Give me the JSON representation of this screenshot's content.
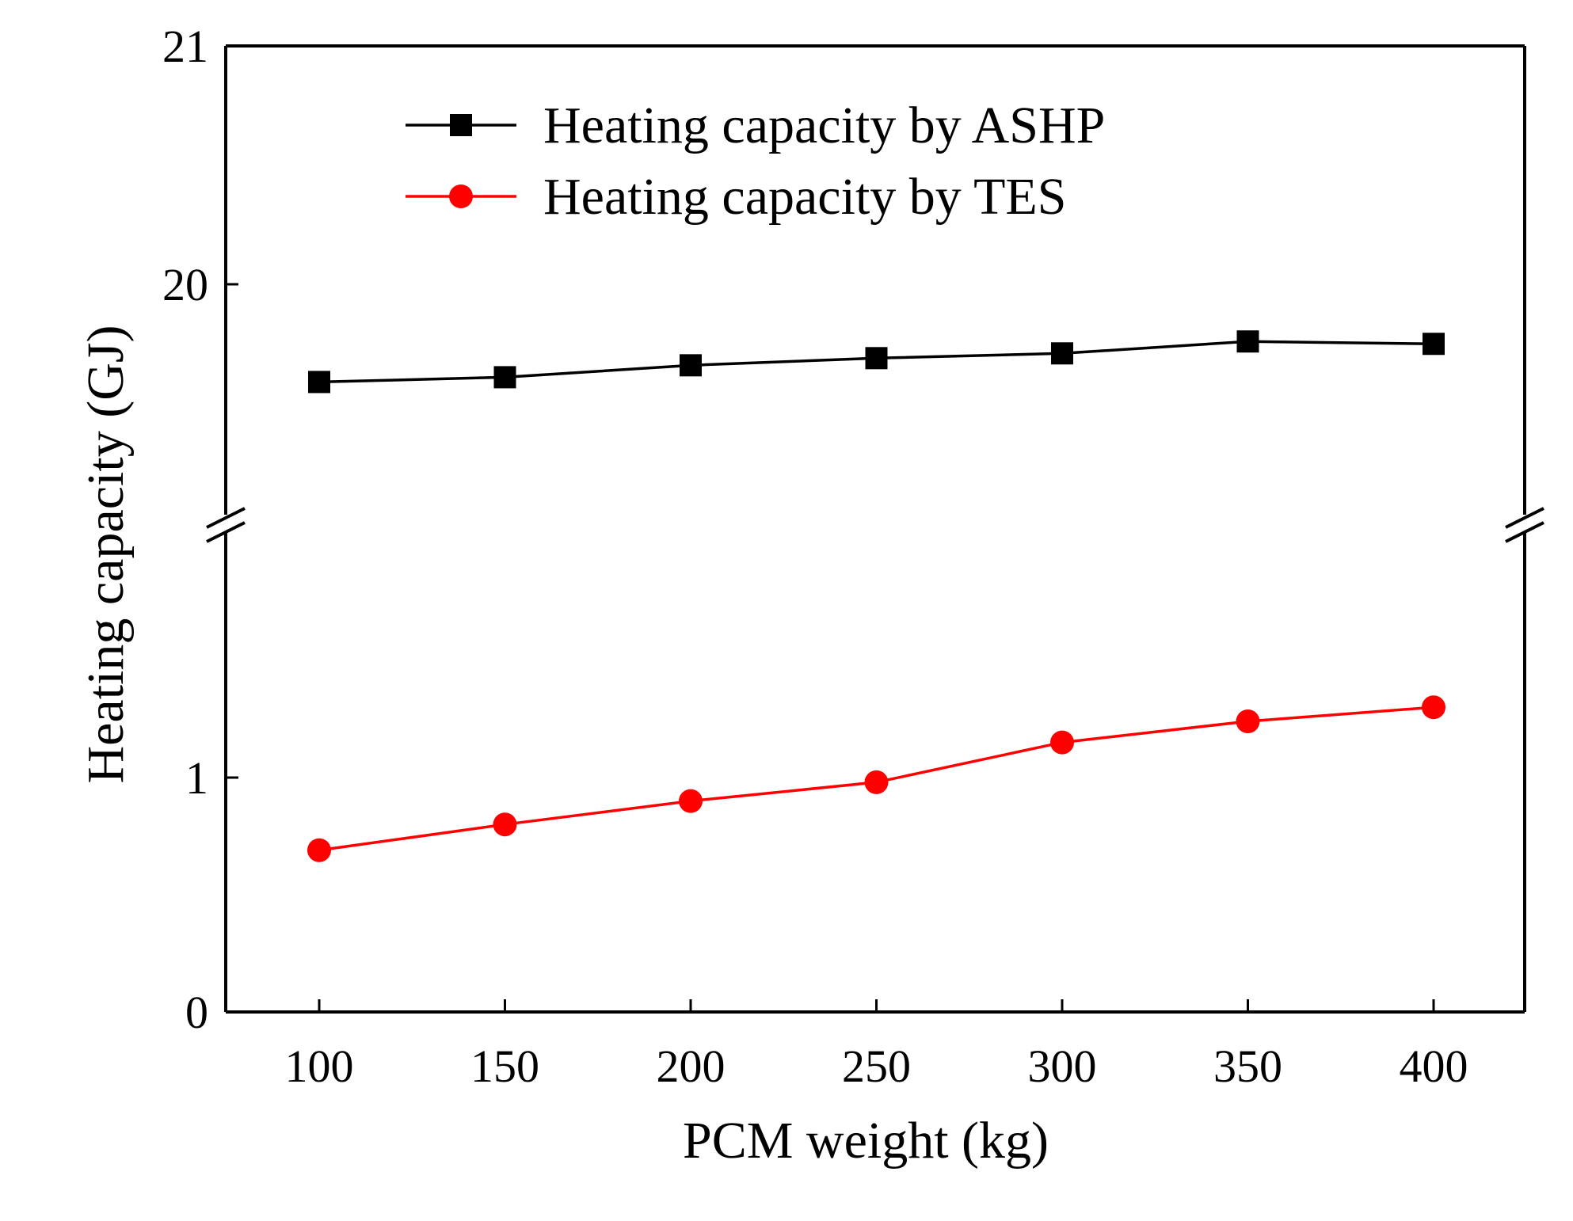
{
  "chart_data": {
    "type": "line",
    "title": "",
    "xlabel": "PCM weight (kg)",
    "ylabel": "Heating capacity (GJ)",
    "x": [
      100,
      150,
      200,
      250,
      300,
      350,
      400
    ],
    "x_ticks": [
      "100",
      "150",
      "200",
      "250",
      "300",
      "350",
      "400"
    ],
    "y_ticks_lower": [
      "0",
      "1"
    ],
    "y_ticks_upper": [
      "20",
      "21"
    ],
    "y_axis_break": "between 2 and 19.1",
    "ylim_lower": [
      0,
      2.05
    ],
    "ylim_upper": [
      19.1,
      21
    ],
    "series": [
      {
        "name": "Heating capacity by ASHP",
        "marker": "square",
        "color": "#000000",
        "values": [
          19.59,
          19.61,
          19.66,
          19.69,
          19.71,
          19.76,
          19.75
        ]
      },
      {
        "name": "Heating capacity by TES",
        "marker": "circle",
        "color": "#ff0000",
        "values": [
          0.69,
          0.8,
          0.9,
          0.98,
          1.15,
          1.24,
          1.3
        ]
      }
    ],
    "legend_position": "top-left"
  }
}
